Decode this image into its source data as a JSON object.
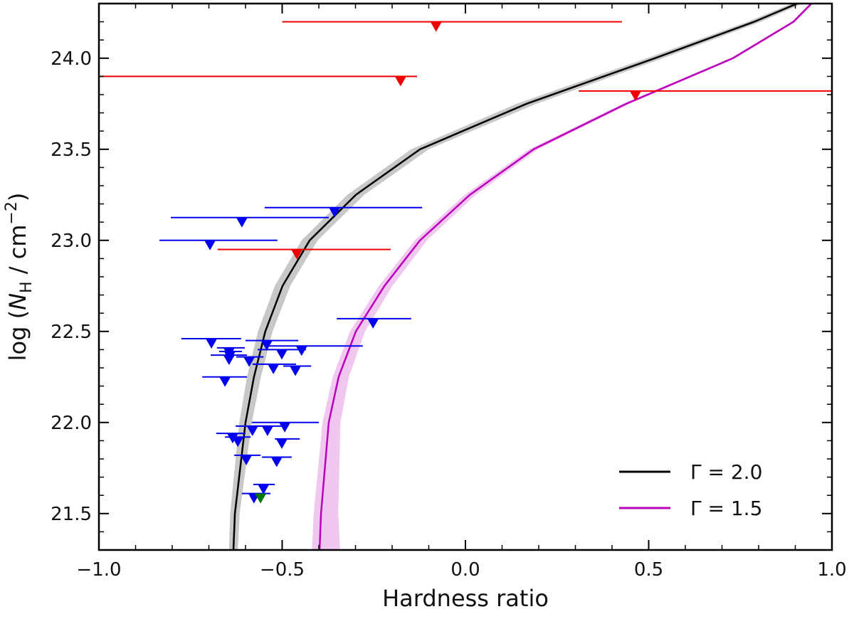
{
  "chart_data": {
    "type": "scatter",
    "xlabel": "Hardness ratio",
    "ylabel_parts": [
      "log (",
      "N",
      "H",
      " / cm",
      "−2",
      ")"
    ],
    "xlim": [
      -1,
      1
    ],
    "ylim": [
      21.3,
      24.3
    ],
    "xticks": [
      {
        "value": -1,
        "label": "−1.0"
      },
      {
        "value": -0.5,
        "label": "−0.5"
      },
      {
        "value": 0,
        "label": "0.0"
      },
      0.5,
      {
        "value": 1,
        "label": "1.0"
      }
    ],
    "yticks": [
      21.5,
      {
        "value": 22,
        "label": "22.0"
      },
      22.5,
      {
        "value": 23,
        "label": "23.0"
      },
      23.5,
      {
        "value": 24,
        "label": "24.0"
      }
    ],
    "legend": "lower right",
    "series": [
      {
        "color": "#ee0000",
        "x": [
          -0.08,
          -0.177,
          0.464,
          -0.46
        ],
        "y": [
          24.2,
          23.9,
          23.82,
          22.95
        ],
        "xlow": [
          -0.5,
          -1.0,
          0.309,
          -0.676
        ],
        "xhigh": [
          0.427,
          -0.132,
          1.0,
          -0.204
        ]
      },
      {
        "color": "#0000ee",
        "x": [
          -0.357,
          -0.61,
          -0.697,
          -0.252,
          -0.693,
          -0.542,
          -0.447,
          -0.645,
          -0.501,
          -0.643,
          -0.645,
          -0.59,
          -0.524,
          -0.464,
          -0.656,
          -0.493,
          -0.581,
          -0.54,
          -0.635,
          -0.621,
          -0.501,
          -0.598,
          -0.515,
          -0.551,
          -0.577
        ],
        "y": [
          23.18,
          23.125,
          23.0,
          22.57,
          22.46,
          22.45,
          22.42,
          22.41,
          22.4,
          22.39,
          22.37,
          22.36,
          22.32,
          22.31,
          22.25,
          22.0,
          21.98,
          21.98,
          21.94,
          21.92,
          21.91,
          21.82,
          21.81,
          21.66,
          21.61
        ],
        "xlow": [
          -0.548,
          -0.804,
          -0.835,
          -0.351,
          -0.775,
          -0.6,
          -0.548,
          -0.678,
          -0.567,
          -0.672,
          -0.695,
          -0.625,
          -0.581,
          -0.497,
          -0.718,
          -0.583,
          -0.627,
          -0.579,
          -0.68,
          -0.656,
          -0.52,
          -0.631,
          -0.555,
          -0.579,
          -0.61
        ],
        "xhigh": [
          -0.118,
          -0.373,
          -0.513,
          -0.148,
          -0.612,
          -0.456,
          -0.28,
          -0.602,
          -0.435,
          -0.61,
          -0.596,
          -0.551,
          -0.462,
          -0.421,
          -0.596,
          -0.4,
          -0.53,
          -0.499,
          -0.6,
          -0.586,
          -0.452,
          -0.559,
          -0.474,
          -0.52,
          -0.532
        ]
      },
      {
        "color": "#007700",
        "x": [
          -0.559
        ],
        "y": [
          21.61
        ]
      }
    ],
    "curves": [
      {
        "name": "Γ = 2.0",
        "color": "#000000",
        "band_color": "#c8c8c8",
        "y": [
          21.3,
          21.5,
          22.0,
          22.25,
          22.5,
          22.75,
          23.0,
          23.25,
          23.5,
          23.75,
          24.0,
          24.2,
          24.3
        ],
        "x": [
          -0.633,
          -0.629,
          -0.6,
          -0.577,
          -0.546,
          -0.499,
          -0.425,
          -0.299,
          -0.124,
          0.167,
          0.517,
          0.788,
          0.905
        ],
        "band_low": [
          -0.645,
          -0.642,
          -0.617,
          -0.596,
          -0.566,
          -0.52,
          -0.447,
          -0.322,
          -0.148,
          0.14,
          0.495,
          0.77,
          0.89
        ],
        "band_high": [
          -0.621,
          -0.616,
          -0.583,
          -0.558,
          -0.526,
          -0.478,
          -0.403,
          -0.276,
          -0.1,
          0.194,
          0.539,
          0.806,
          0.92
        ]
      },
      {
        "name": "Γ = 1.5",
        "color": "#bb00bb",
        "band_color": "#f0c8ef",
        "y": [
          21.3,
          21.5,
          22.0,
          22.25,
          22.5,
          22.75,
          23.0,
          23.25,
          23.5,
          23.75,
          24.0,
          24.2,
          24.3
        ],
        "x": [
          -0.398,
          -0.394,
          -0.373,
          -0.346,
          -0.299,
          -0.221,
          -0.124,
          0.012,
          0.186,
          0.439,
          0.73,
          0.895,
          0.944
        ],
        "band_low": [
          -0.419,
          -0.414,
          -0.39,
          -0.362,
          -0.315,
          -0.236,
          -0.138,
          -0.002,
          0.174,
          0.43,
          0.723,
          0.89,
          0.94
        ],
        "band_high": [
          -0.342,
          -0.347,
          -0.341,
          -0.318,
          -0.274,
          -0.199,
          -0.105,
          0.028,
          0.198,
          0.448,
          0.737,
          0.9,
          0.948
        ]
      }
    ]
  }
}
